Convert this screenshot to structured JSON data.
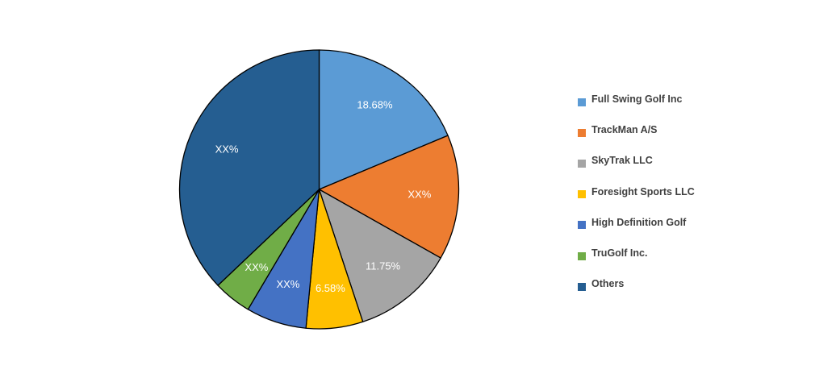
{
  "chart_data": {
    "type": "pie",
    "title": "",
    "legend_position": "right",
    "slices": [
      {
        "name": "Full Swing Golf Inc",
        "value": 18.68,
        "label": "18.68%",
        "color": "#5B9BD5"
      },
      {
        "name": "TrackMan A/S",
        "value": 14.5,
        "label": "XX%",
        "color": "#ED7D31"
      },
      {
        "name": "SkyTrak LLC",
        "value": 11.75,
        "label": "11.75%",
        "color": "#A5A5A5"
      },
      {
        "name": "Foresight Sports LLC",
        "value": 6.58,
        "label": "6.58%",
        "color": "#FFC000"
      },
      {
        "name": "High Definition Golf",
        "value": 7.0,
        "label": "XX%",
        "color": "#4472C4"
      },
      {
        "name": "TruGolf Inc.",
        "value": 4.4,
        "label": "XX%",
        "color": "#70AD47"
      },
      {
        "name": "Others",
        "value": 37.09,
        "label": "XX%",
        "color": "#255E91"
      }
    ]
  }
}
